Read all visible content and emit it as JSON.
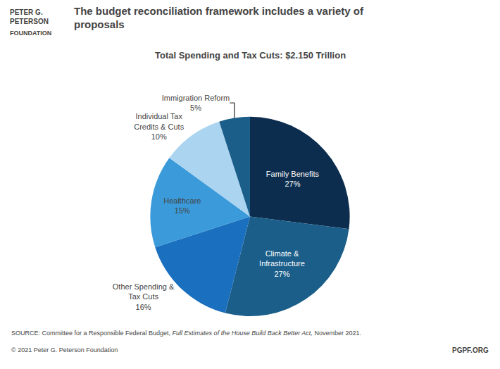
{
  "chart_data": {
    "type": "pie",
    "title": "The budget reconciliation framework includes a variety of\nproposals",
    "subtitle": "Total Spending and Tax Cuts: $2.150 Trillion",
    "categories": [
      "Family Benefits",
      "Climate &\nInfrastructure",
      "Other Spending &\nTax Cuts",
      "Healthcare",
      "Individual Tax\nCredits & Cuts",
      "Immigration Reform"
    ],
    "values": [
      27,
      27,
      16,
      15,
      10,
      5
    ],
    "value_labels": [
      "27%",
      "27%",
      "16%",
      "15%",
      "10%",
      "5%"
    ],
    "colors": [
      "#0d2d4e",
      "#1b5e8a",
      "#1a6fbe",
      "#3b9ad9",
      "#aad4f0",
      "#1b5e8a"
    ],
    "data_labels": true,
    "logo_text": [
      "PETER G.\nPETERSON",
      "FOUNDATION"
    ],
    "source": [
      "SOURCE: Committee for a Responsible Federal Budget, ",
      "Full Estimates of the House Build Back Better Act,",
      " November 2021."
    ],
    "copyright": "© 2021 Peter G. Peterson Foundation",
    "footer_right": "PGPF.ORG"
  }
}
